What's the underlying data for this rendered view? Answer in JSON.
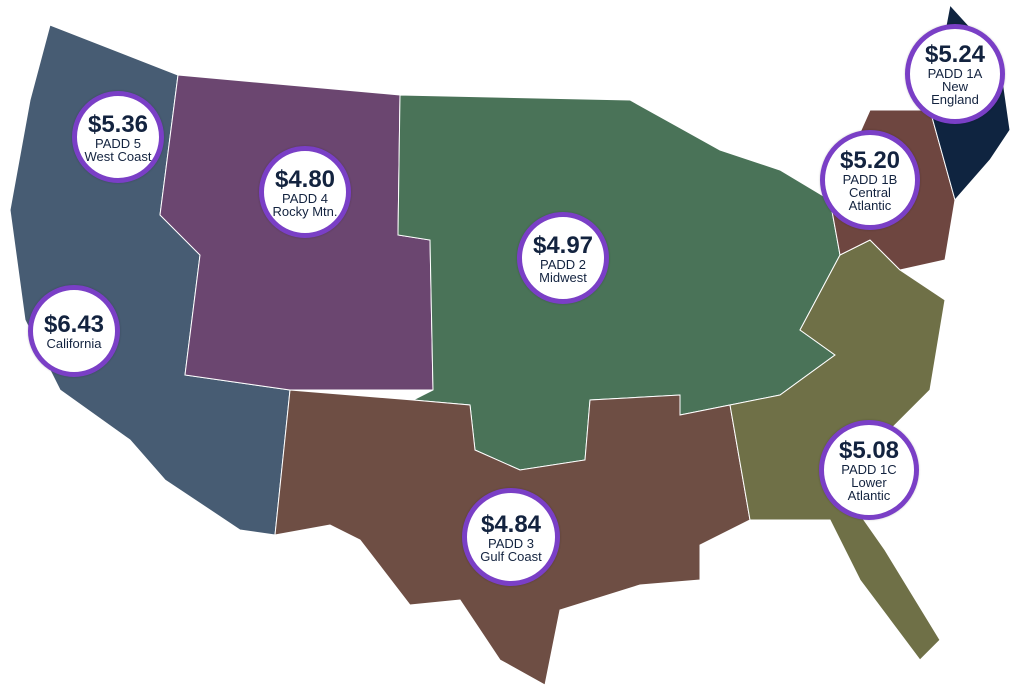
{
  "regions": [
    {
      "id": "padd5",
      "price": "$5.36",
      "line1": "PADD 5",
      "line2": "West Coast",
      "color": "#475c73"
    },
    {
      "id": "padd4",
      "price": "$4.80",
      "line1": "PADD 4",
      "line2": "Rocky Mtn.",
      "color": "#6b4670"
    },
    {
      "id": "padd2",
      "price": "$4.97",
      "line1": "PADD 2",
      "line2": "Midwest",
      "color": "#4a7358"
    },
    {
      "id": "california",
      "price": "$6.43",
      "line1": "California",
      "line2": "",
      "color": "#475c73"
    },
    {
      "id": "padd1a",
      "price": "$5.24",
      "line1": "PADD 1A",
      "line2": "New England",
      "color": "#0f2440"
    },
    {
      "id": "padd1b",
      "price": "$5.20",
      "line1": "PADD 1B",
      "line2": "Central Atlantic",
      "color": "#6e4640"
    },
    {
      "id": "padd1c",
      "price": "$5.08",
      "line1": "PADD 1C",
      "line2": "Lower Atlantic",
      "color": "#6f7047"
    },
    {
      "id": "padd3",
      "price": "$4.84",
      "line1": "PADD 3",
      "line2": "Gulf Coast",
      "color": "#6e4e44"
    }
  ],
  "ring_color": "#7a3fc6"
}
